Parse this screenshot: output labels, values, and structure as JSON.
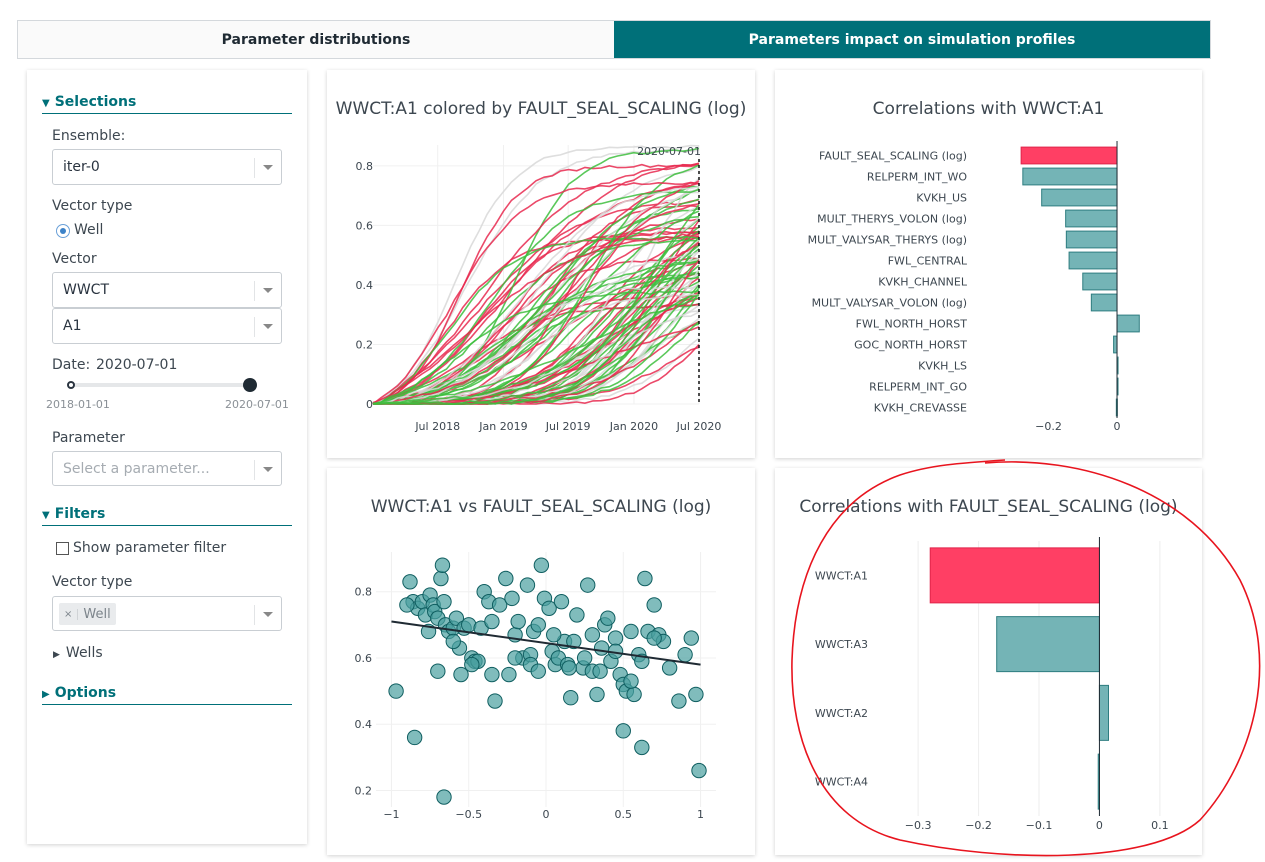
{
  "tabs": [
    {
      "label": "Parameter distributions",
      "active": false
    },
    {
      "label": "Parameters impact on simulation profiles",
      "active": true
    }
  ],
  "sidebar": {
    "selections_header": "Selections",
    "ensemble_label": "Ensemble:",
    "ensemble_value": "iter-0",
    "vector_type_label": "Vector type",
    "vector_type_option": "Well",
    "vector_label": "Vector",
    "vector_value": "WWCT",
    "well_value": "A1",
    "date_label": "Date:",
    "date_value": "2020-07-01",
    "date_min": "2018-01-01",
    "date_max": "2020-07-01",
    "parameter_label": "Parameter",
    "parameter_placeholder": "Select a parameter...",
    "filters_header": "Filters",
    "show_param_filter_label": "Show parameter filter",
    "filter_vector_type_label": "Vector type",
    "filter_chip_remove": "×",
    "filter_chip_value": "Well",
    "wells_label": "Wells",
    "options_header": "Options"
  },
  "colors": {
    "accent": "#007079",
    "negative_bar": "#ff3f64",
    "teal_bar": "#74b4b6",
    "scatter": "#4a9fa0"
  },
  "charts": {
    "timeseries_title": "WWCT:A1 colored by FAULT_SEAL_SCALING (log)",
    "timeseries_date_marker": "2020-07-01",
    "corr_vec_title": "Correlations with WWCT:A1",
    "scatter_title": "WWCT:A1 vs FAULT_SEAL_SCALING (log)",
    "corr_param_title": "Correlations with FAULT_SEAL_SCALING (log)"
  },
  "chart_data": [
    {
      "type": "line",
      "title": "WWCT:A1 colored by FAULT_SEAL_SCALING (log)",
      "x_ticks": [
        "Jul 2018",
        "Jan 2019",
        "Jul 2019",
        "Jan 2020",
        "Jul 2020"
      ],
      "x_range": [
        "2018-01-01",
        "2020-07-01"
      ],
      "y_ticks": [
        "0",
        "0.2",
        "0.4",
        "0.6",
        "0.8"
      ],
      "ylim": [
        0,
        0.87
      ],
      "color_scale": [
        "#e8294f",
        "#d8d8d8",
        "#3dbe3d"
      ],
      "marker_date": "2020-07-01",
      "series_count": 100
    },
    {
      "type": "bar",
      "orientation": "horizontal",
      "title": "Correlations with WWCT:A1",
      "categories": [
        "FAULT_SEAL_SCALING (log)",
        "RELPERM_INT_WO",
        "KVKH_US",
        "MULT_THERYS_VOLON (log)",
        "MULT_VALYSAR_THERYS (log)",
        "FWL_CENTRAL",
        "KVKH_CHANNEL",
        "MULT_VALYSAR_VOLON (log)",
        "FWL_NORTH_HORST",
        "GOC_NORTH_HORST",
        "KVKH_LS",
        "RELPERM_INT_GO",
        "KVKH_CREVASSE"
      ],
      "values": [
        -0.28,
        -0.275,
        -0.22,
        -0.15,
        -0.148,
        -0.14,
        -0.1,
        -0.075,
        0.065,
        -0.01,
        0.003,
        0.002,
        -0.002
      ],
      "highlight_index": 0,
      "x_ticks": [
        "−0.2",
        "0"
      ],
      "xlim": [
        -0.33,
        0.07
      ]
    },
    {
      "type": "scatter",
      "title": "WWCT:A1 vs FAULT_SEAL_SCALING (log)",
      "x_ticks": [
        "−1",
        "−0.5",
        "0",
        "0.5",
        "1"
      ],
      "y_ticks": [
        "0.2",
        "0.4",
        "0.6",
        "0.8"
      ],
      "xlim": [
        -1.1,
        1.1
      ],
      "ylim": [
        0.15,
        0.92
      ],
      "trendline": {
        "x": [
          -1,
          1
        ],
        "y": [
          0.71,
          0.58
        ]
      },
      "points": [
        [
          -0.88,
          0.83
        ],
        [
          -0.86,
          0.77
        ],
        [
          -0.83,
          0.75
        ],
        [
          -0.8,
          0.77
        ],
        [
          -0.78,
          0.73
        ],
        [
          -0.76,
          0.68
        ],
        [
          -0.75,
          0.79
        ],
        [
          -0.73,
          0.76
        ],
        [
          -0.72,
          0.74
        ],
        [
          -0.7,
          0.72
        ],
        [
          -0.68,
          0.84
        ],
        [
          -0.67,
          0.88
        ],
        [
          -0.66,
          0.77
        ],
        [
          -0.65,
          0.7
        ],
        [
          -0.63,
          0.68
        ],
        [
          -0.6,
          0.69
        ],
        [
          -0.58,
          0.72
        ],
        [
          -0.56,
          0.63
        ],
        [
          -0.55,
          0.55
        ],
        [
          -0.53,
          0.69
        ],
        [
          -0.5,
          0.7
        ],
        [
          -0.48,
          0.6
        ],
        [
          -0.46,
          0.59
        ],
        [
          -0.44,
          0.59
        ],
        [
          -0.42,
          0.69
        ],
        [
          -0.4,
          0.8
        ],
        [
          -0.37,
          0.77
        ],
        [
          -0.35,
          0.71
        ],
        [
          -0.33,
          0.47
        ],
        [
          -0.3,
          0.76
        ],
        [
          -0.26,
          0.84
        ],
        [
          -0.24,
          0.55
        ],
        [
          -0.22,
          0.78
        ],
        [
          -0.2,
          0.67
        ],
        [
          -0.18,
          0.71
        ],
        [
          -0.15,
          0.6
        ],
        [
          -0.12,
          0.82
        ],
        [
          -0.1,
          0.61
        ],
        [
          -0.08,
          0.68
        ],
        [
          -0.05,
          0.7
        ],
        [
          -0.03,
          0.88
        ],
        [
          -0.01,
          0.78
        ],
        [
          0.02,
          0.75
        ],
        [
          0.04,
          0.62
        ],
        [
          0.06,
          0.58
        ],
        [
          0.08,
          0.6
        ],
        [
          0.1,
          0.77
        ],
        [
          0.12,
          0.65
        ],
        [
          0.14,
          0.58
        ],
        [
          0.16,
          0.48
        ],
        [
          0.18,
          0.65
        ],
        [
          0.2,
          0.73
        ],
        [
          0.24,
          0.57
        ],
        [
          0.27,
          0.82
        ],
        [
          0.3,
          0.56
        ],
        [
          0.33,
          0.49
        ],
        [
          0.36,
          0.63
        ],
        [
          0.38,
          0.7
        ],
        [
          0.4,
          0.72
        ],
        [
          0.42,
          0.59
        ],
        [
          0.45,
          0.66
        ],
        [
          0.48,
          0.55
        ],
        [
          0.5,
          0.52
        ],
        [
          0.52,
          0.5
        ],
        [
          0.55,
          0.68
        ],
        [
          0.57,
          0.49
        ],
        [
          0.6,
          0.61
        ],
        [
          0.62,
          0.59
        ],
        [
          0.64,
          0.84
        ],
        [
          0.66,
          0.68
        ],
        [
          0.7,
          0.76
        ],
        [
          0.73,
          0.67
        ],
        [
          0.76,
          0.65
        ],
        [
          0.8,
          0.57
        ],
        [
          0.86,
          0.47
        ],
        [
          0.9,
          0.61
        ],
        [
          0.94,
          0.66
        ],
        [
          0.97,
          0.49
        ],
        [
          0.99,
          0.26
        ],
        [
          -0.97,
          0.5
        ],
        [
          -0.85,
          0.36
        ],
        [
          -0.66,
          0.18
        ],
        [
          0.5,
          0.38
        ],
        [
          0.62,
          0.33
        ],
        [
          -0.6,
          0.65
        ],
        [
          -0.48,
          0.58
        ],
        [
          0.05,
          0.67
        ],
        [
          0.3,
          0.67
        ],
        [
          -0.35,
          0.55
        ],
        [
          0.55,
          0.53
        ],
        [
          0.15,
          0.57
        ],
        [
          -0.2,
          0.6
        ],
        [
          -0.7,
          0.56
        ],
        [
          0.7,
          0.66
        ],
        [
          -0.9,
          0.76
        ],
        [
          -0.1,
          0.58
        ],
        [
          0.35,
          0.56
        ],
        [
          0.45,
          0.62
        ],
        [
          0.25,
          0.6
        ],
        [
          -0.05,
          0.56
        ]
      ]
    },
    {
      "type": "bar",
      "orientation": "horizontal",
      "title": "Correlations with FAULT_SEAL_SCALING (log)",
      "categories": [
        "WWCT:A1",
        "WWCT:A3",
        "WWCT:A2",
        "WWCT:A4"
      ],
      "values": [
        -0.28,
        -0.17,
        0.015,
        -0.002
      ],
      "highlight_index": 0,
      "x_ticks": [
        "−0.3",
        "−0.2",
        "−0.1",
        "0",
        "0.1"
      ],
      "xlim": [
        -0.33,
        0.13
      ]
    }
  ]
}
